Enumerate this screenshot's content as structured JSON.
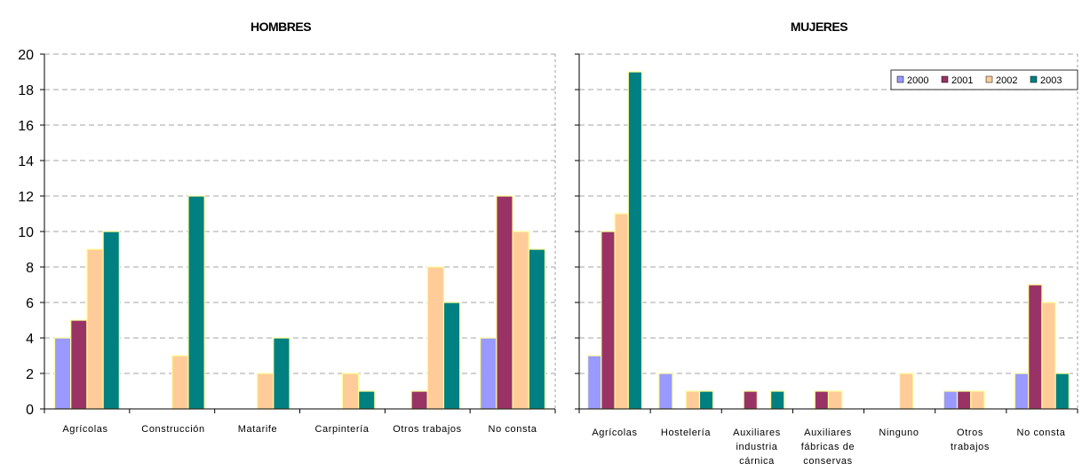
{
  "chart_data": [
    {
      "type": "bar",
      "title": "HOMBRES",
      "categories": [
        "Agrícolas",
        "Construcción",
        "Matarife",
        "Carpintería",
        "Otros trabajos",
        "No consta"
      ],
      "series": [
        {
          "name": "2000",
          "values": [
            4,
            0,
            0,
            0,
            0,
            4
          ]
        },
        {
          "name": "2001",
          "values": [
            5,
            0,
            0,
            0,
            1,
            12
          ]
        },
        {
          "name": "2002",
          "values": [
            9,
            3,
            2,
            2,
            8,
            10
          ]
        },
        {
          "name": "2003",
          "values": [
            10,
            12,
            4,
            1,
            6,
            9
          ]
        }
      ],
      "ylim": [
        0,
        20
      ],
      "yticks": [
        "0",
        "2",
        "4",
        "6",
        "8",
        "10",
        "12",
        "14",
        "16",
        "18",
        "20"
      ],
      "grid": true
    },
    {
      "type": "bar",
      "title": "MUJERES",
      "categories": [
        "Agrícolas",
        "Hostelería",
        "Auxiliares industria cárnica",
        "Auxiliares fábricas de conservas",
        "Ninguno",
        "Otros trabajos",
        "No consta"
      ],
      "series": [
        {
          "name": "2000",
          "values": [
            3,
            2,
            0,
            0,
            0,
            1,
            2
          ]
        },
        {
          "name": "2001",
          "values": [
            10,
            0,
            1,
            1,
            0,
            1,
            7
          ]
        },
        {
          "name": "2002",
          "values": [
            11,
            1,
            0,
            1,
            2,
            1,
            6
          ]
        },
        {
          "name": "2003",
          "values": [
            19,
            1,
            1,
            0,
            0,
            0,
            2
          ]
        }
      ],
      "ylim": [
        0,
        20
      ],
      "grid": true,
      "legend": "top-right"
    }
  ],
  "colors": {
    "2000": "#9999ff",
    "2001": "#993366",
    "2002": "#ffcc99",
    "2003": "#008080",
    "bar_outline": "#ffff99"
  }
}
